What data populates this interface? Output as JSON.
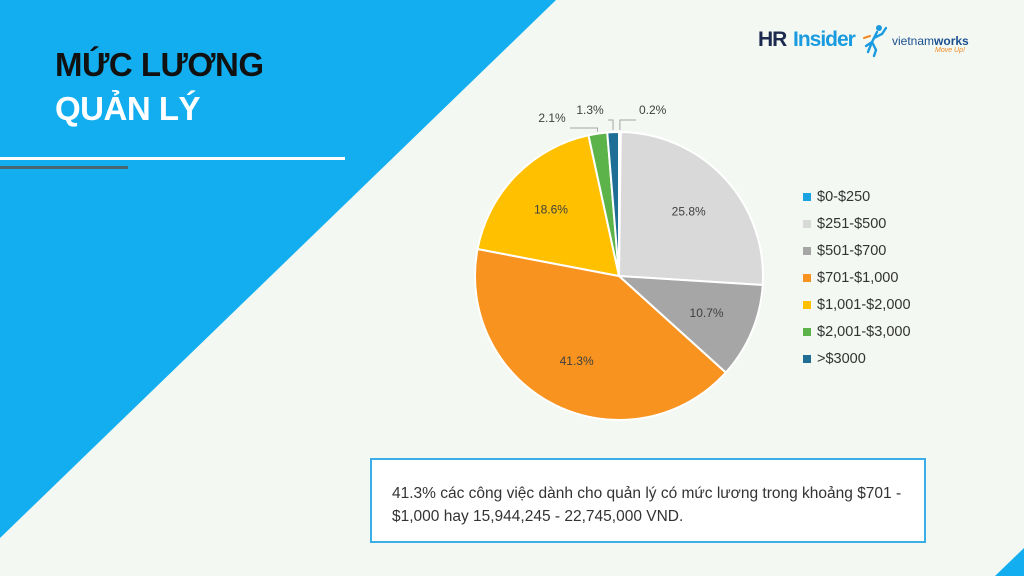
{
  "slide": {
    "title_line1": "MỨC LƯƠNG",
    "title_line2": "QUẢN LÝ",
    "colors": {
      "bg_blue": "#12aef0",
      "slide_bg": "#f3f8f2",
      "note_border": "#3aaee8"
    }
  },
  "logo": {
    "hr": "HR",
    "insider": "Insider",
    "vnw_light": "vietnam",
    "vnw_bold": "works",
    "tagline": "Move Up!"
  },
  "chart_data": {
    "type": "pie",
    "title": "",
    "categories": [
      "$0-$250",
      "$251-$500",
      "$501-$700",
      "$701-$1,000",
      "$1,001-$2,000",
      "$2,001-$3,000",
      ">$3000"
    ],
    "values": [
      0.2,
      25.8,
      10.7,
      41.3,
      18.6,
      2.1,
      1.3
    ],
    "labels": [
      "0.2%",
      "25.8%",
      "10.7%",
      "41.3%",
      "18.6%",
      "2.1%",
      "1.3%"
    ],
    "colors": [
      "#1aa3e0",
      "#d9d9d9",
      "#a6a6a6",
      "#f7931e",
      "#ffc000",
      "#5bb34a",
      "#1f6e96"
    ],
    "legend_position": "right"
  },
  "note": {
    "text": "41.3% các công việc dành cho quản lý có mức lương trong khoảng $701 - $1,000 hay 15,944,245 - 22,745,000 VND."
  }
}
